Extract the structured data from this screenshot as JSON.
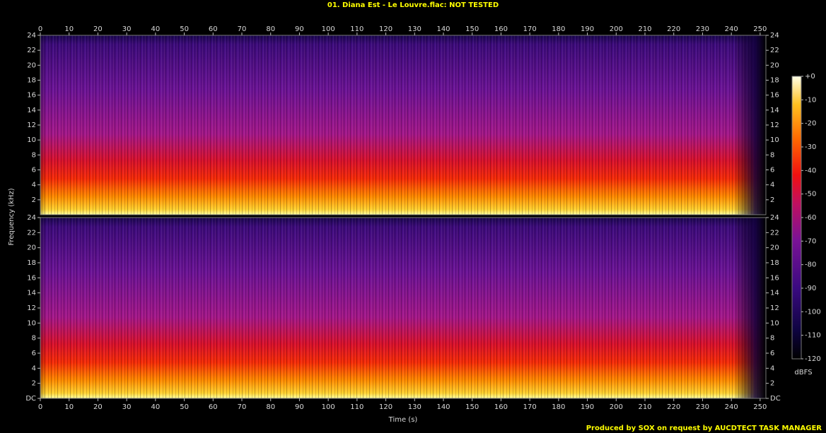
{
  "chart_data": {
    "type": "spectrogram",
    "title": "01. Diana Est - Le Louvre.flac: NOT TESTED",
    "xlabel": "Time (s)",
    "ylabel": "Frequency (kHz)",
    "xlim": [
      0,
      252
    ],
    "xticks": [
      0,
      10,
      20,
      30,
      40,
      50,
      60,
      70,
      80,
      90,
      100,
      110,
      120,
      130,
      140,
      150,
      160,
      170,
      180,
      190,
      200,
      210,
      220,
      230,
      240,
      250
    ],
    "channels": [
      {
        "ylim": [
          0,
          24
        ],
        "yticks": [
          2,
          4,
          6,
          8,
          10,
          12,
          14,
          16,
          18,
          20,
          22,
          24
        ]
      },
      {
        "ylim": [
          0,
          24
        ],
        "yticks": [
          {
            "value": 0,
            "label": "DC"
          },
          2,
          4,
          6,
          8,
          10,
          12,
          14,
          16,
          18,
          20,
          22,
          24
        ]
      }
    ],
    "colorbar": {
      "label": "dBFS",
      "lim": [
        -120,
        0
      ],
      "ticks": [
        {
          "value": 0,
          "label": "+0"
        },
        -10,
        -20,
        -30,
        -40,
        -50,
        -60,
        -70,
        -80,
        -90,
        -100,
        -110,
        -120
      ]
    },
    "credit": "Produced by SOX on request by AUCDTECT TASK MANAGER"
  }
}
